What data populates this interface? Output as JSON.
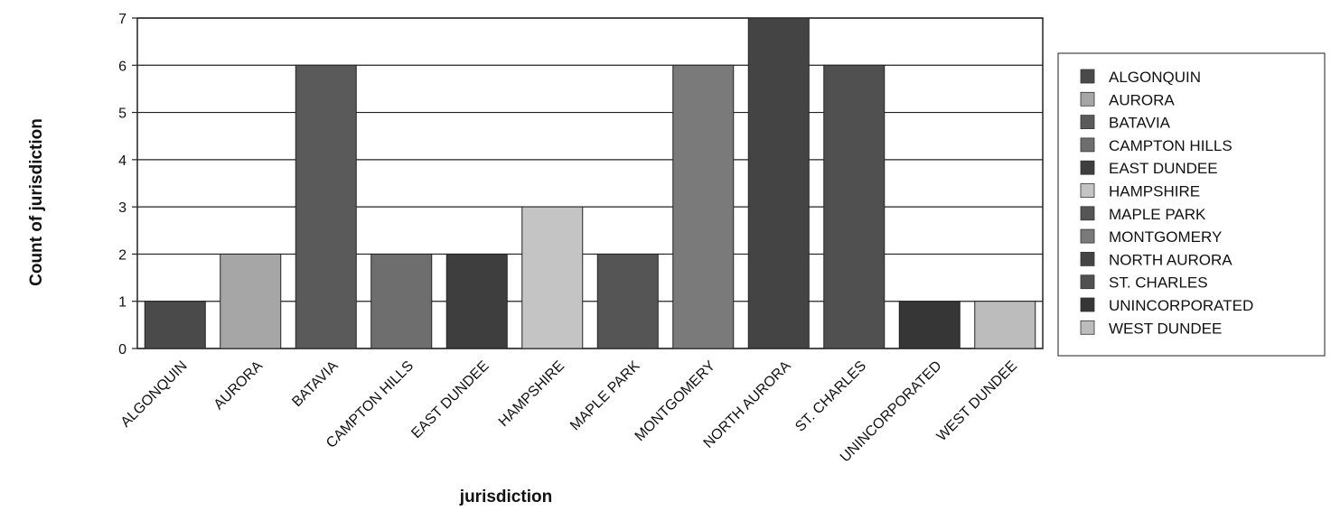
{
  "chart_data": {
    "type": "bar",
    "xlabel": "jurisdiction",
    "ylabel": "Count of jurisdiction",
    "ylim": [
      0,
      7
    ],
    "yticks": [
      0,
      1,
      2,
      3,
      4,
      5,
      6,
      7
    ],
    "grid": "horizontal",
    "legend_position": "right",
    "categories": [
      "ALGONQUIN",
      "AURORA",
      "BATAVIA",
      "CAMPTON HILLS",
      "EAST DUNDEE",
      "HAMPSHIRE",
      "MAPLE PARK",
      "MONTGOMERY",
      "NORTH AURORA",
      "ST. CHARLES",
      "UNINCORPORATED",
      "WEST DUNDEE"
    ],
    "values": [
      1,
      2,
      6,
      2,
      2,
      3,
      2,
      6,
      7,
      6,
      1,
      1
    ],
    "colors": [
      "#4a4a4a",
      "#a6a6a6",
      "#5a5a5a",
      "#6e6e6e",
      "#3e3e3e",
      "#c4c4c4",
      "#555555",
      "#7a7a7a",
      "#444444",
      "#505050",
      "#363636",
      "#bcbcbc"
    ],
    "legend": [
      "ALGONQUIN",
      "AURORA",
      "BATAVIA",
      "CAMPTON HILLS",
      "EAST DUNDEE",
      "HAMPSHIRE",
      "MAPLE PARK",
      "MONTGOMERY",
      "NORTH AURORA",
      "ST. CHARLES",
      "UNINCORPORATED",
      "WEST DUNDEE"
    ]
  }
}
